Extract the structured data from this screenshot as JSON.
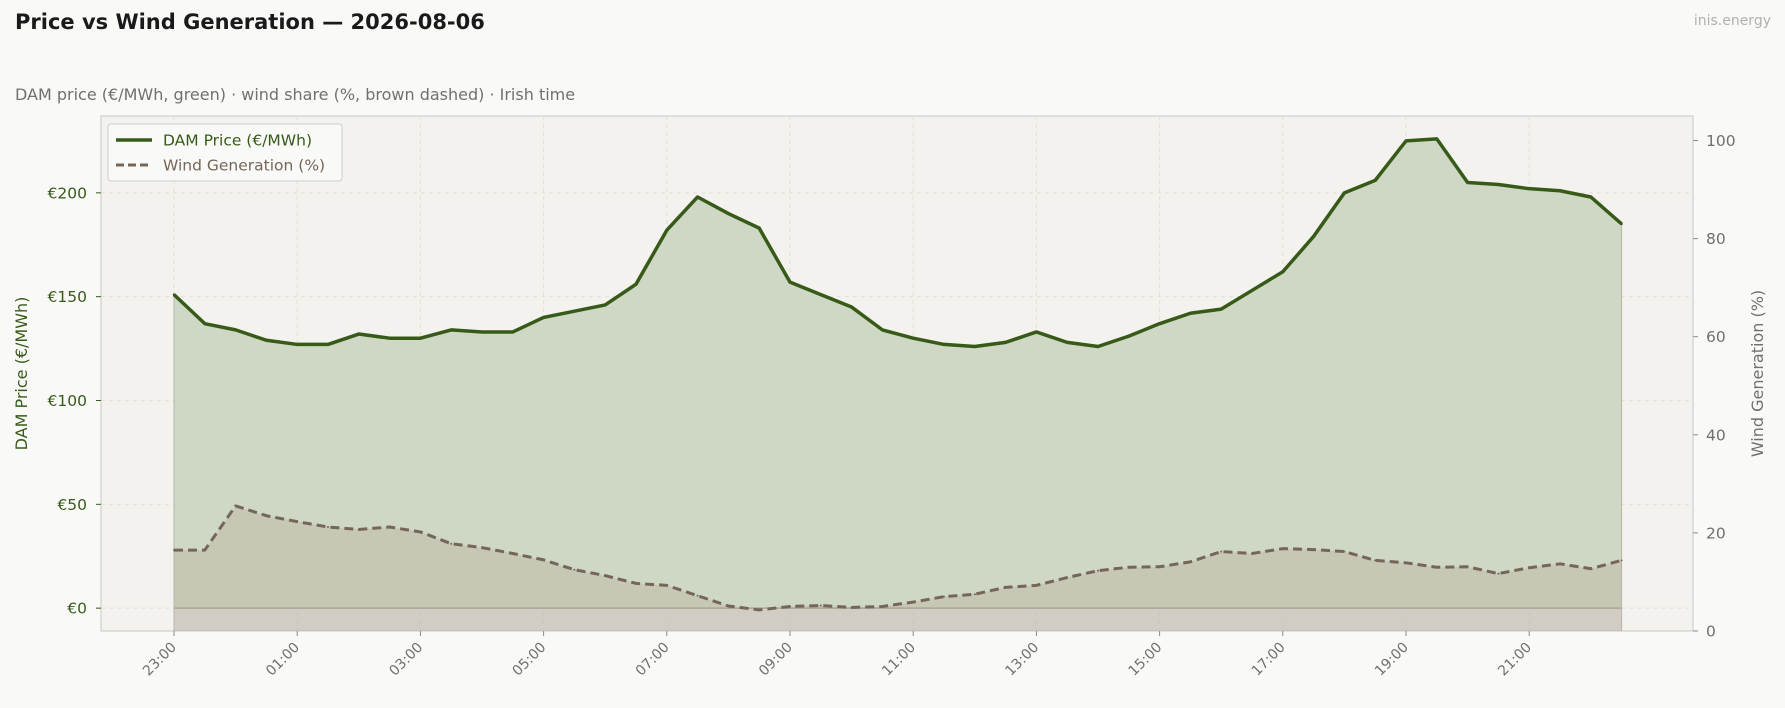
{
  "header": {
    "title": "Price vs Wind Generation — 2026-08-06",
    "brand": "inis.energy",
    "subtitle": "DAM price (€/MWh, green)  ·  wind share (%, brown dashed)  ·  Irish time"
  },
  "colors": {
    "price": "#375a19",
    "price_fill": "#cfd8c4",
    "wind": "#756659",
    "plot_bg": "#f3f2ee",
    "page_bg": "#f9f9f7"
  },
  "chart_data": {
    "type": "line",
    "title": "Price vs Wind Generation — 2026-08-06",
    "x": [
      "23:00",
      "23:30",
      "00:00",
      "00:30",
      "01:00",
      "01:30",
      "02:00",
      "02:30",
      "03:00",
      "03:30",
      "04:00",
      "04:30",
      "05:00",
      "05:30",
      "06:00",
      "06:30",
      "07:00",
      "07:30",
      "08:00",
      "08:30",
      "09:00",
      "09:30",
      "10:00",
      "10:30",
      "11:00",
      "11:30",
      "12:00",
      "12:30",
      "13:00",
      "13:30",
      "14:00",
      "14:30",
      "15:00",
      "15:30",
      "16:00",
      "16:30",
      "17:00",
      "17:30",
      "18:00",
      "18:30",
      "19:00",
      "19:30",
      "20:00",
      "20:30",
      "21:00",
      "21:30",
      "22:00",
      "22:30"
    ],
    "x_tick_labels": [
      "23:00",
      "01:00",
      "03:00",
      "05:00",
      "07:00",
      "09:00",
      "11:00",
      "13:00",
      "15:00",
      "17:00",
      "19:00",
      "21:00"
    ],
    "series": [
      {
        "name": "DAM Price (€/MWh)",
        "axis": "left",
        "style": "solid",
        "values": [
          151,
          137,
          134,
          129,
          127,
          127,
          132,
          130,
          130,
          134,
          133,
          133,
          140,
          143,
          146,
          156,
          182,
          198,
          190,
          183,
          157,
          151,
          145,
          134,
          130,
          127,
          126,
          128,
          133,
          128,
          126,
          131,
          137,
          142,
          144,
          153,
          162,
          179,
          200,
          206,
          225,
          226,
          205,
          204,
          202,
          201,
          198,
          185
        ]
      },
      {
        "name": "Wind Generation (%)",
        "axis": "right",
        "style": "dashed",
        "values": [
          16.5,
          16.5,
          25.5,
          23.5,
          22.3,
          21.2,
          20.7,
          21.2,
          20.2,
          17.8,
          17.0,
          15.8,
          14.5,
          12.5,
          11.3,
          9.7,
          9.3,
          7.2,
          5.1,
          4.3,
          5.0,
          5.2,
          4.8,
          5.0,
          5.9,
          7.0,
          7.5,
          8.9,
          9.3,
          10.9,
          12.3,
          13.0,
          13.1,
          14.1,
          16.2,
          15.8,
          16.8,
          16.6,
          16.2,
          14.4,
          13.9,
          13.0,
          13.1,
          11.7,
          12.9,
          13.7,
          12.7,
          14.4
        ]
      }
    ],
    "y_left": {
      "label": "DAM Price (€/MWh)",
      "lim": [
        -11,
        237
      ],
      "ticks": [
        0,
        50,
        100,
        150,
        200
      ],
      "tick_labels": [
        "€0",
        "€50",
        "€100",
        "€150",
        "€200"
      ]
    },
    "y_right": {
      "label": "Wind Generation (%)",
      "lim": [
        0,
        105
      ],
      "ticks": [
        0,
        20,
        40,
        60,
        80,
        100
      ],
      "tick_labels": [
        "0",
        "20",
        "40",
        "60",
        "80",
        "100"
      ]
    },
    "legend": {
      "placement": "top-left",
      "entries": [
        "DAM Price (€/MWh)",
        "Wind Generation (%)"
      ]
    },
    "grid": true
  }
}
